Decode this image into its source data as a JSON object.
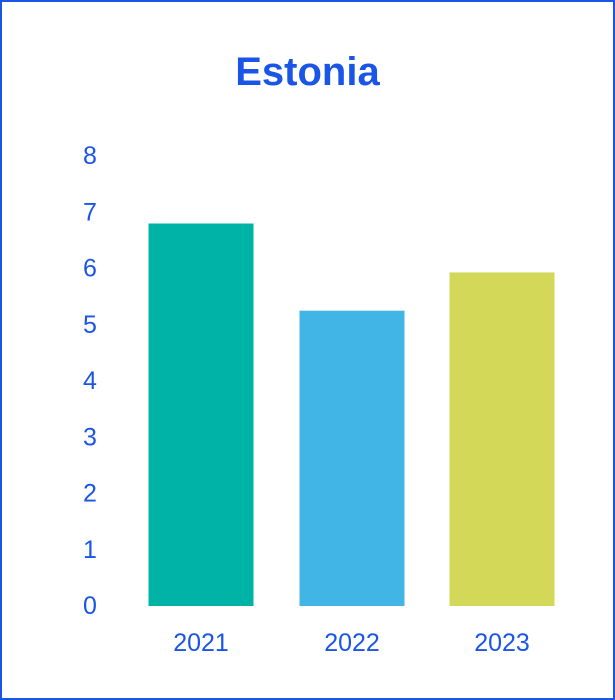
{
  "chart_data": {
    "type": "bar",
    "title": "Estonia",
    "categories": [
      "2021",
      "2022",
      "2023"
    ],
    "values": [
      6.8,
      5.25,
      5.93
    ],
    "colors": [
      "#00b3a7",
      "#41b6e6",
      "#d4d858"
    ],
    "ylim": [
      0,
      8
    ],
    "yticks": [
      "0",
      "1",
      "2",
      "3",
      "4",
      "5",
      "6",
      "7",
      "8"
    ],
    "xlabel": "",
    "ylabel": "",
    "grid": false,
    "legend": "none"
  },
  "colors": {
    "accent": "#1a55e8",
    "background": "#ffffff"
  }
}
